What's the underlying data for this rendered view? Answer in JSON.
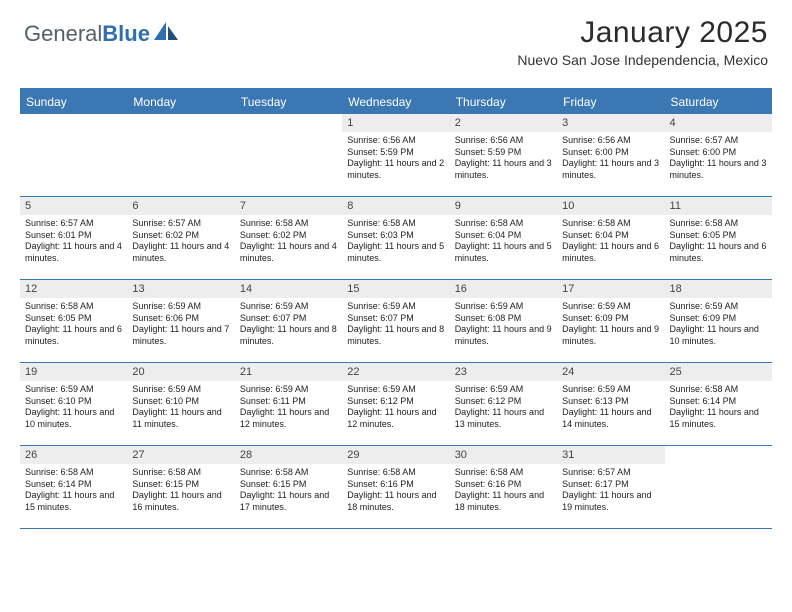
{
  "logo": {
    "text_general": "General",
    "text_blue": "Blue"
  },
  "header": {
    "title": "January 2025",
    "subtitle": "Nuevo San Jose Independencia, Mexico"
  },
  "colors": {
    "header_bar": "#3b78b3",
    "daynum_bg": "#ededed",
    "border": "#3b78b3"
  },
  "dayheaders": [
    "Sunday",
    "Monday",
    "Tuesday",
    "Wednesday",
    "Thursday",
    "Friday",
    "Saturday"
  ],
  "weeks": [
    [
      null,
      null,
      null,
      {
        "n": "1",
        "sr": "Sunrise: 6:56 AM",
        "ss": "Sunset: 5:59 PM",
        "dl": "Daylight: 11 hours and 2 minutes."
      },
      {
        "n": "2",
        "sr": "Sunrise: 6:56 AM",
        "ss": "Sunset: 5:59 PM",
        "dl": "Daylight: 11 hours and 3 minutes."
      },
      {
        "n": "3",
        "sr": "Sunrise: 6:56 AM",
        "ss": "Sunset: 6:00 PM",
        "dl": "Daylight: 11 hours and 3 minutes."
      },
      {
        "n": "4",
        "sr": "Sunrise: 6:57 AM",
        "ss": "Sunset: 6:00 PM",
        "dl": "Daylight: 11 hours and 3 minutes."
      }
    ],
    [
      {
        "n": "5",
        "sr": "Sunrise: 6:57 AM",
        "ss": "Sunset: 6:01 PM",
        "dl": "Daylight: 11 hours and 4 minutes."
      },
      {
        "n": "6",
        "sr": "Sunrise: 6:57 AM",
        "ss": "Sunset: 6:02 PM",
        "dl": "Daylight: 11 hours and 4 minutes."
      },
      {
        "n": "7",
        "sr": "Sunrise: 6:58 AM",
        "ss": "Sunset: 6:02 PM",
        "dl": "Daylight: 11 hours and 4 minutes."
      },
      {
        "n": "8",
        "sr": "Sunrise: 6:58 AM",
        "ss": "Sunset: 6:03 PM",
        "dl": "Daylight: 11 hours and 5 minutes."
      },
      {
        "n": "9",
        "sr": "Sunrise: 6:58 AM",
        "ss": "Sunset: 6:04 PM",
        "dl": "Daylight: 11 hours and 5 minutes."
      },
      {
        "n": "10",
        "sr": "Sunrise: 6:58 AM",
        "ss": "Sunset: 6:04 PM",
        "dl": "Daylight: 11 hours and 6 minutes."
      },
      {
        "n": "11",
        "sr": "Sunrise: 6:58 AM",
        "ss": "Sunset: 6:05 PM",
        "dl": "Daylight: 11 hours and 6 minutes."
      }
    ],
    [
      {
        "n": "12",
        "sr": "Sunrise: 6:58 AM",
        "ss": "Sunset: 6:05 PM",
        "dl": "Daylight: 11 hours and 6 minutes."
      },
      {
        "n": "13",
        "sr": "Sunrise: 6:59 AM",
        "ss": "Sunset: 6:06 PM",
        "dl": "Daylight: 11 hours and 7 minutes."
      },
      {
        "n": "14",
        "sr": "Sunrise: 6:59 AM",
        "ss": "Sunset: 6:07 PM",
        "dl": "Daylight: 11 hours and 8 minutes."
      },
      {
        "n": "15",
        "sr": "Sunrise: 6:59 AM",
        "ss": "Sunset: 6:07 PM",
        "dl": "Daylight: 11 hours and 8 minutes."
      },
      {
        "n": "16",
        "sr": "Sunrise: 6:59 AM",
        "ss": "Sunset: 6:08 PM",
        "dl": "Daylight: 11 hours and 9 minutes."
      },
      {
        "n": "17",
        "sr": "Sunrise: 6:59 AM",
        "ss": "Sunset: 6:09 PM",
        "dl": "Daylight: 11 hours and 9 minutes."
      },
      {
        "n": "18",
        "sr": "Sunrise: 6:59 AM",
        "ss": "Sunset: 6:09 PM",
        "dl": "Daylight: 11 hours and 10 minutes."
      }
    ],
    [
      {
        "n": "19",
        "sr": "Sunrise: 6:59 AM",
        "ss": "Sunset: 6:10 PM",
        "dl": "Daylight: 11 hours and 10 minutes."
      },
      {
        "n": "20",
        "sr": "Sunrise: 6:59 AM",
        "ss": "Sunset: 6:10 PM",
        "dl": "Daylight: 11 hours and 11 minutes."
      },
      {
        "n": "21",
        "sr": "Sunrise: 6:59 AM",
        "ss": "Sunset: 6:11 PM",
        "dl": "Daylight: 11 hours and 12 minutes."
      },
      {
        "n": "22",
        "sr": "Sunrise: 6:59 AM",
        "ss": "Sunset: 6:12 PM",
        "dl": "Daylight: 11 hours and 12 minutes."
      },
      {
        "n": "23",
        "sr": "Sunrise: 6:59 AM",
        "ss": "Sunset: 6:12 PM",
        "dl": "Daylight: 11 hours and 13 minutes."
      },
      {
        "n": "24",
        "sr": "Sunrise: 6:59 AM",
        "ss": "Sunset: 6:13 PM",
        "dl": "Daylight: 11 hours and 14 minutes."
      },
      {
        "n": "25",
        "sr": "Sunrise: 6:58 AM",
        "ss": "Sunset: 6:14 PM",
        "dl": "Daylight: 11 hours and 15 minutes."
      }
    ],
    [
      {
        "n": "26",
        "sr": "Sunrise: 6:58 AM",
        "ss": "Sunset: 6:14 PM",
        "dl": "Daylight: 11 hours and 15 minutes."
      },
      {
        "n": "27",
        "sr": "Sunrise: 6:58 AM",
        "ss": "Sunset: 6:15 PM",
        "dl": "Daylight: 11 hours and 16 minutes."
      },
      {
        "n": "28",
        "sr": "Sunrise: 6:58 AM",
        "ss": "Sunset: 6:15 PM",
        "dl": "Daylight: 11 hours and 17 minutes."
      },
      {
        "n": "29",
        "sr": "Sunrise: 6:58 AM",
        "ss": "Sunset: 6:16 PM",
        "dl": "Daylight: 11 hours and 18 minutes."
      },
      {
        "n": "30",
        "sr": "Sunrise: 6:58 AM",
        "ss": "Sunset: 6:16 PM",
        "dl": "Daylight: 11 hours and 18 minutes."
      },
      {
        "n": "31",
        "sr": "Sunrise: 6:57 AM",
        "ss": "Sunset: 6:17 PM",
        "dl": "Daylight: 11 hours and 19 minutes."
      },
      null
    ]
  ]
}
